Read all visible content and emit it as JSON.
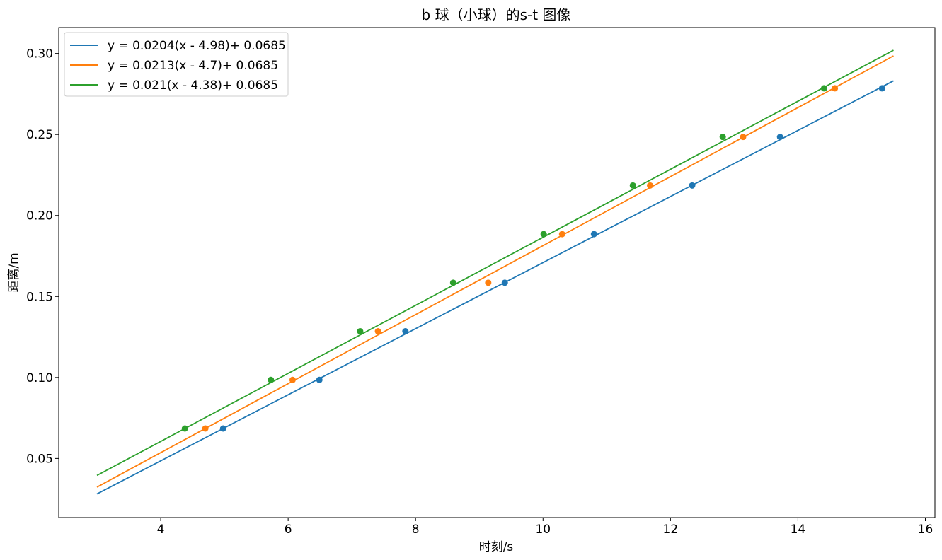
{
  "chart_data": {
    "type": "line",
    "title": "b 球（小球）的s-t 图像",
    "xlabel": "时刻/s",
    "ylabel": "距离/m",
    "xlim": [
      2.4,
      16.15
    ],
    "ylim": [
      0.0135,
      0.316
    ],
    "xticks": [
      4,
      6,
      8,
      10,
      12,
      14,
      16
    ],
    "yticks": [
      0.05,
      0.1,
      0.15,
      0.2,
      0.25,
      0.3
    ],
    "ytick_format": 2,
    "grid": false,
    "legend_position": "upper-left",
    "series": [
      {
        "name": "y = 0.0204(x - 4.98)+ 0.0685",
        "color": "#1f77b4",
        "slope": 0.0204,
        "x0": 4.98,
        "b": 0.0685,
        "line_x": [
          3.0,
          15.5
        ],
        "points": [
          [
            4.98,
            0.0685
          ],
          [
            6.49,
            0.0985
          ],
          [
            7.84,
            0.1285
          ],
          [
            9.4,
            0.1585
          ],
          [
            10.8,
            0.1885
          ],
          [
            12.34,
            0.2185
          ],
          [
            13.72,
            0.2485
          ],
          [
            15.32,
            0.2785
          ]
        ]
      },
      {
        "name": "y = 0.0213(x - 4.7)+ 0.0685",
        "color": "#ff7f0e",
        "slope": 0.0213,
        "x0": 4.7,
        "b": 0.0685,
        "line_x": [
          3.0,
          15.5
        ],
        "points": [
          [
            4.7,
            0.0685
          ],
          [
            6.07,
            0.0985
          ],
          [
            7.41,
            0.1285
          ],
          [
            9.14,
            0.1585
          ],
          [
            10.3,
            0.1885
          ],
          [
            11.68,
            0.2185
          ],
          [
            13.14,
            0.2485
          ],
          [
            14.58,
            0.2785
          ]
        ]
      },
      {
        "name": "y = 0.021(x - 4.38)+ 0.0685",
        "color": "#2ca02c",
        "slope": 0.021,
        "x0": 4.38,
        "b": 0.0685,
        "line_x": [
          3.0,
          15.5
        ],
        "points": [
          [
            4.38,
            0.0685
          ],
          [
            5.73,
            0.0985
          ],
          [
            7.13,
            0.1285
          ],
          [
            8.59,
            0.1585
          ],
          [
            10.01,
            0.1885
          ],
          [
            11.41,
            0.2185
          ],
          [
            12.82,
            0.2485
          ],
          [
            14.41,
            0.2785
          ]
        ]
      }
    ]
  }
}
